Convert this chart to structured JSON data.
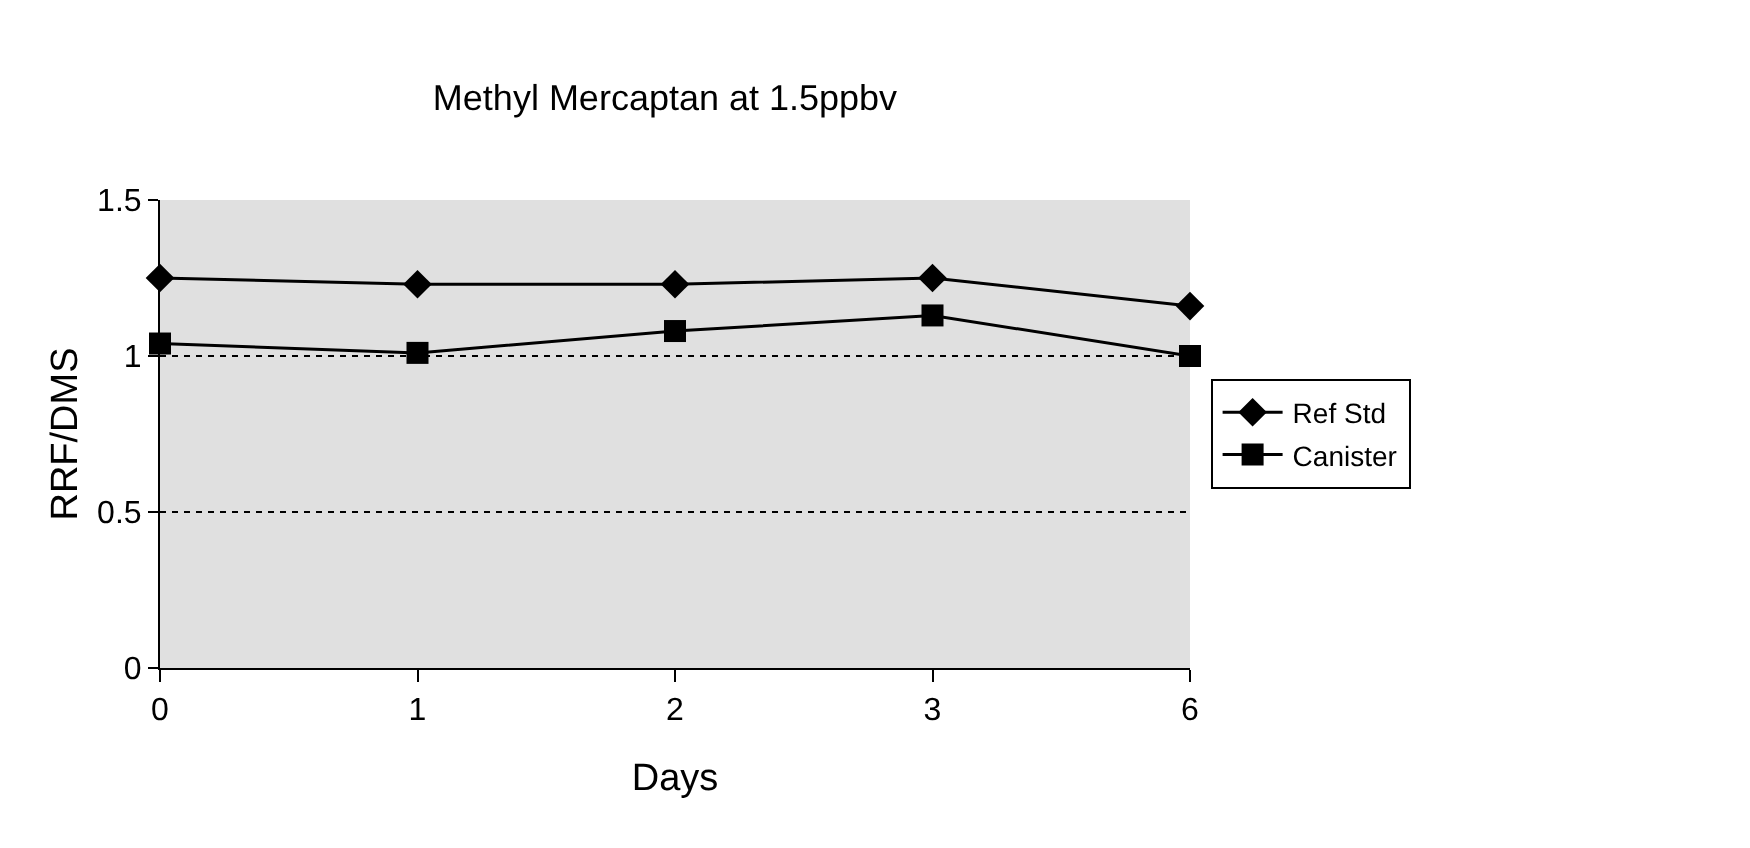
{
  "chart_data": {
    "type": "line",
    "title": "Methyl Mercaptan at 1.5ppbv",
    "xlabel": "Days",
    "ylabel": "RRF/DMS",
    "categories": [
      "0",
      "1",
      "2",
      "3",
      "6"
    ],
    "series": [
      {
        "name": "Ref Std",
        "color": "#000000",
        "marker": "diamond",
        "values": [
          1.25,
          1.23,
          1.23,
          1.25,
          1.16
        ]
      },
      {
        "name": "Canister",
        "color": "#000000",
        "marker": "square",
        "values": [
          1.04,
          1.01,
          1.08,
          1.13,
          1.0
        ]
      }
    ],
    "ylim": [
      0,
      1.5
    ],
    "yticks": [
      0,
      0.5,
      1,
      1.5
    ],
    "grid": "y",
    "legend": "right",
    "line_style": "solid"
  }
}
